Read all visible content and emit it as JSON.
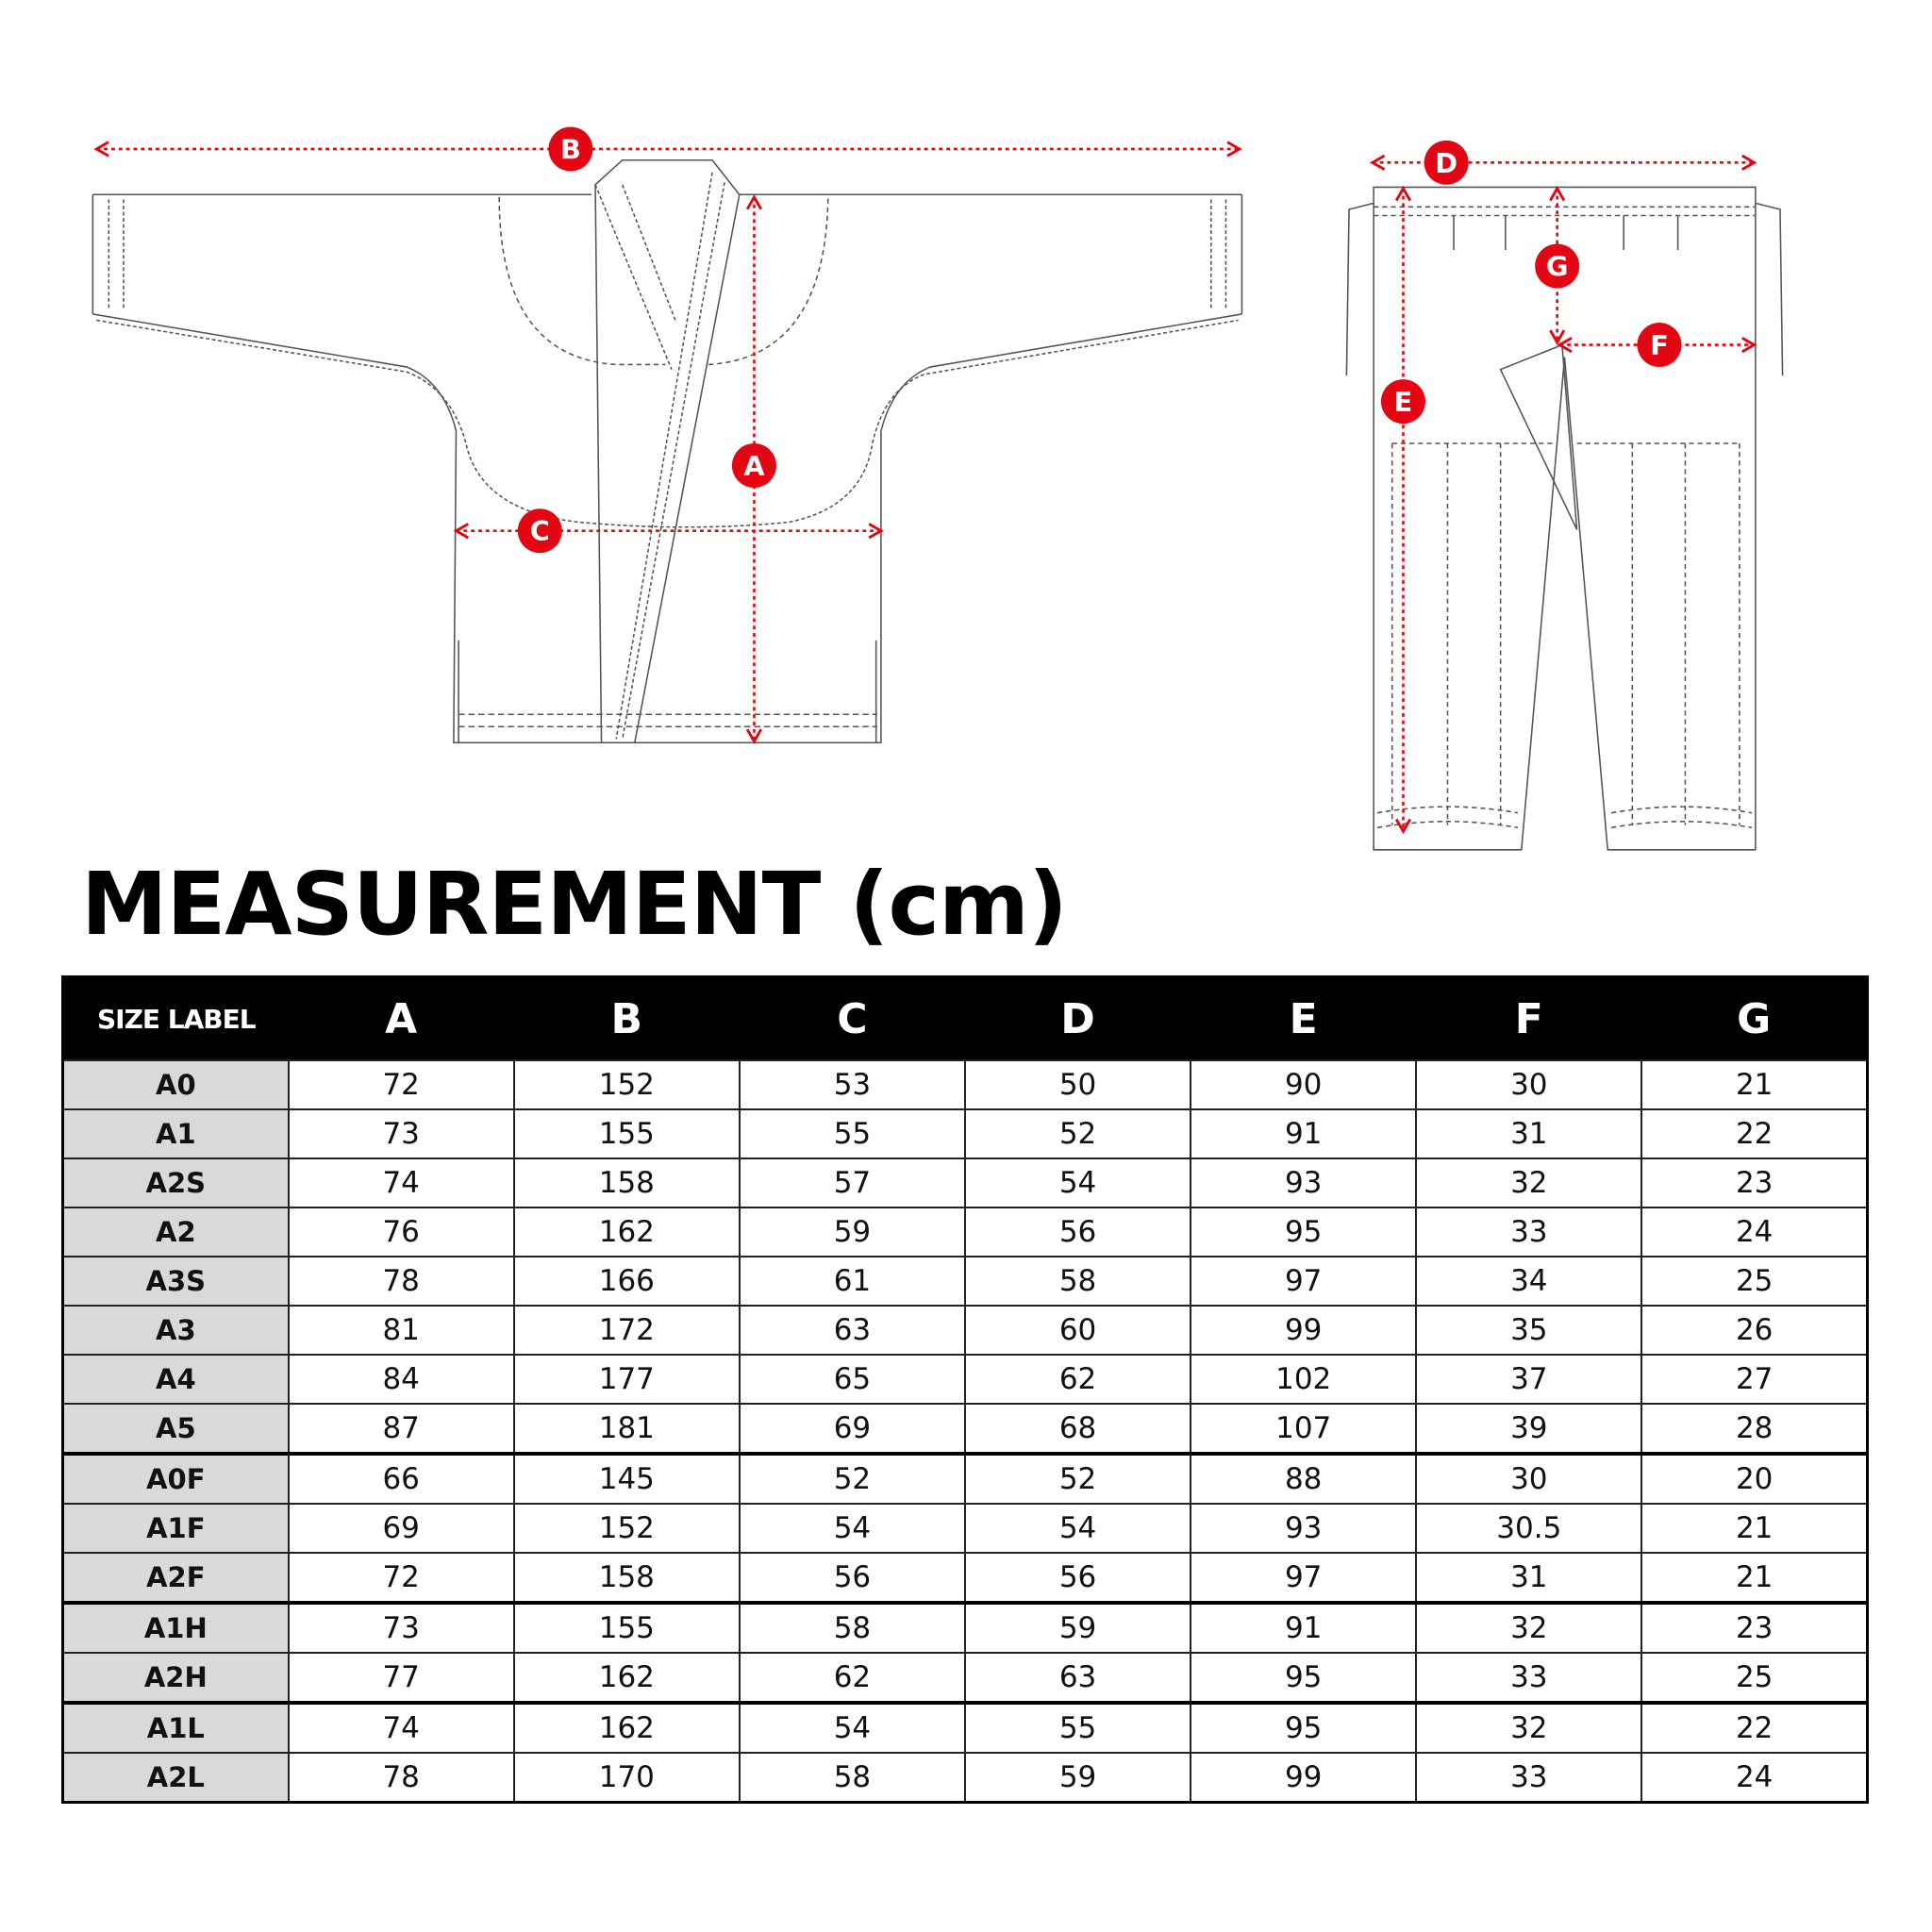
{
  "title": "MEASUREMENT (cm)",
  "accent_color": "#e30613",
  "markers": {
    "A": "A",
    "B": "B",
    "C": "C",
    "D": "D",
    "E": "E",
    "F": "F",
    "G": "G"
  },
  "table": {
    "headers": [
      "SIZE LABEL",
      "A",
      "B",
      "C",
      "D",
      "E",
      "F",
      "G"
    ],
    "rows": [
      [
        "A0",
        "72",
        "152",
        "53",
        "50",
        "90",
        "30",
        "21"
      ],
      [
        "A1",
        "73",
        "155",
        "55",
        "52",
        "91",
        "31",
        "22"
      ],
      [
        "A2S",
        "74",
        "158",
        "57",
        "54",
        "93",
        "32",
        "23"
      ],
      [
        "A2",
        "76",
        "162",
        "59",
        "56",
        "95",
        "33",
        "24"
      ],
      [
        "A3S",
        "78",
        "166",
        "61",
        "58",
        "97",
        "34",
        "25"
      ],
      [
        "A3",
        "81",
        "172",
        "63",
        "60",
        "99",
        "35",
        "26"
      ],
      [
        "A4",
        "84",
        "177",
        "65",
        "62",
        "102",
        "37",
        "27"
      ],
      [
        "A5",
        "87",
        "181",
        "69",
        "68",
        "107",
        "39",
        "28"
      ],
      [
        "A0F",
        "66",
        "145",
        "52",
        "52",
        "88",
        "30",
        "20"
      ],
      [
        "A1F",
        "69",
        "152",
        "54",
        "54",
        "93",
        "30.5",
        "21"
      ],
      [
        "A2F",
        "72",
        "158",
        "56",
        "56",
        "97",
        "31",
        "21"
      ],
      [
        "A1H",
        "73",
        "155",
        "58",
        "59",
        "91",
        "32",
        "23"
      ],
      [
        "A2H",
        "77",
        "162",
        "62",
        "63",
        "95",
        "33",
        "25"
      ],
      [
        "A1L",
        "74",
        "162",
        "54",
        "55",
        "95",
        "32",
        "22"
      ],
      [
        "A2L",
        "78",
        "170",
        "58",
        "59",
        "99",
        "33",
        "24"
      ]
    ]
  }
}
